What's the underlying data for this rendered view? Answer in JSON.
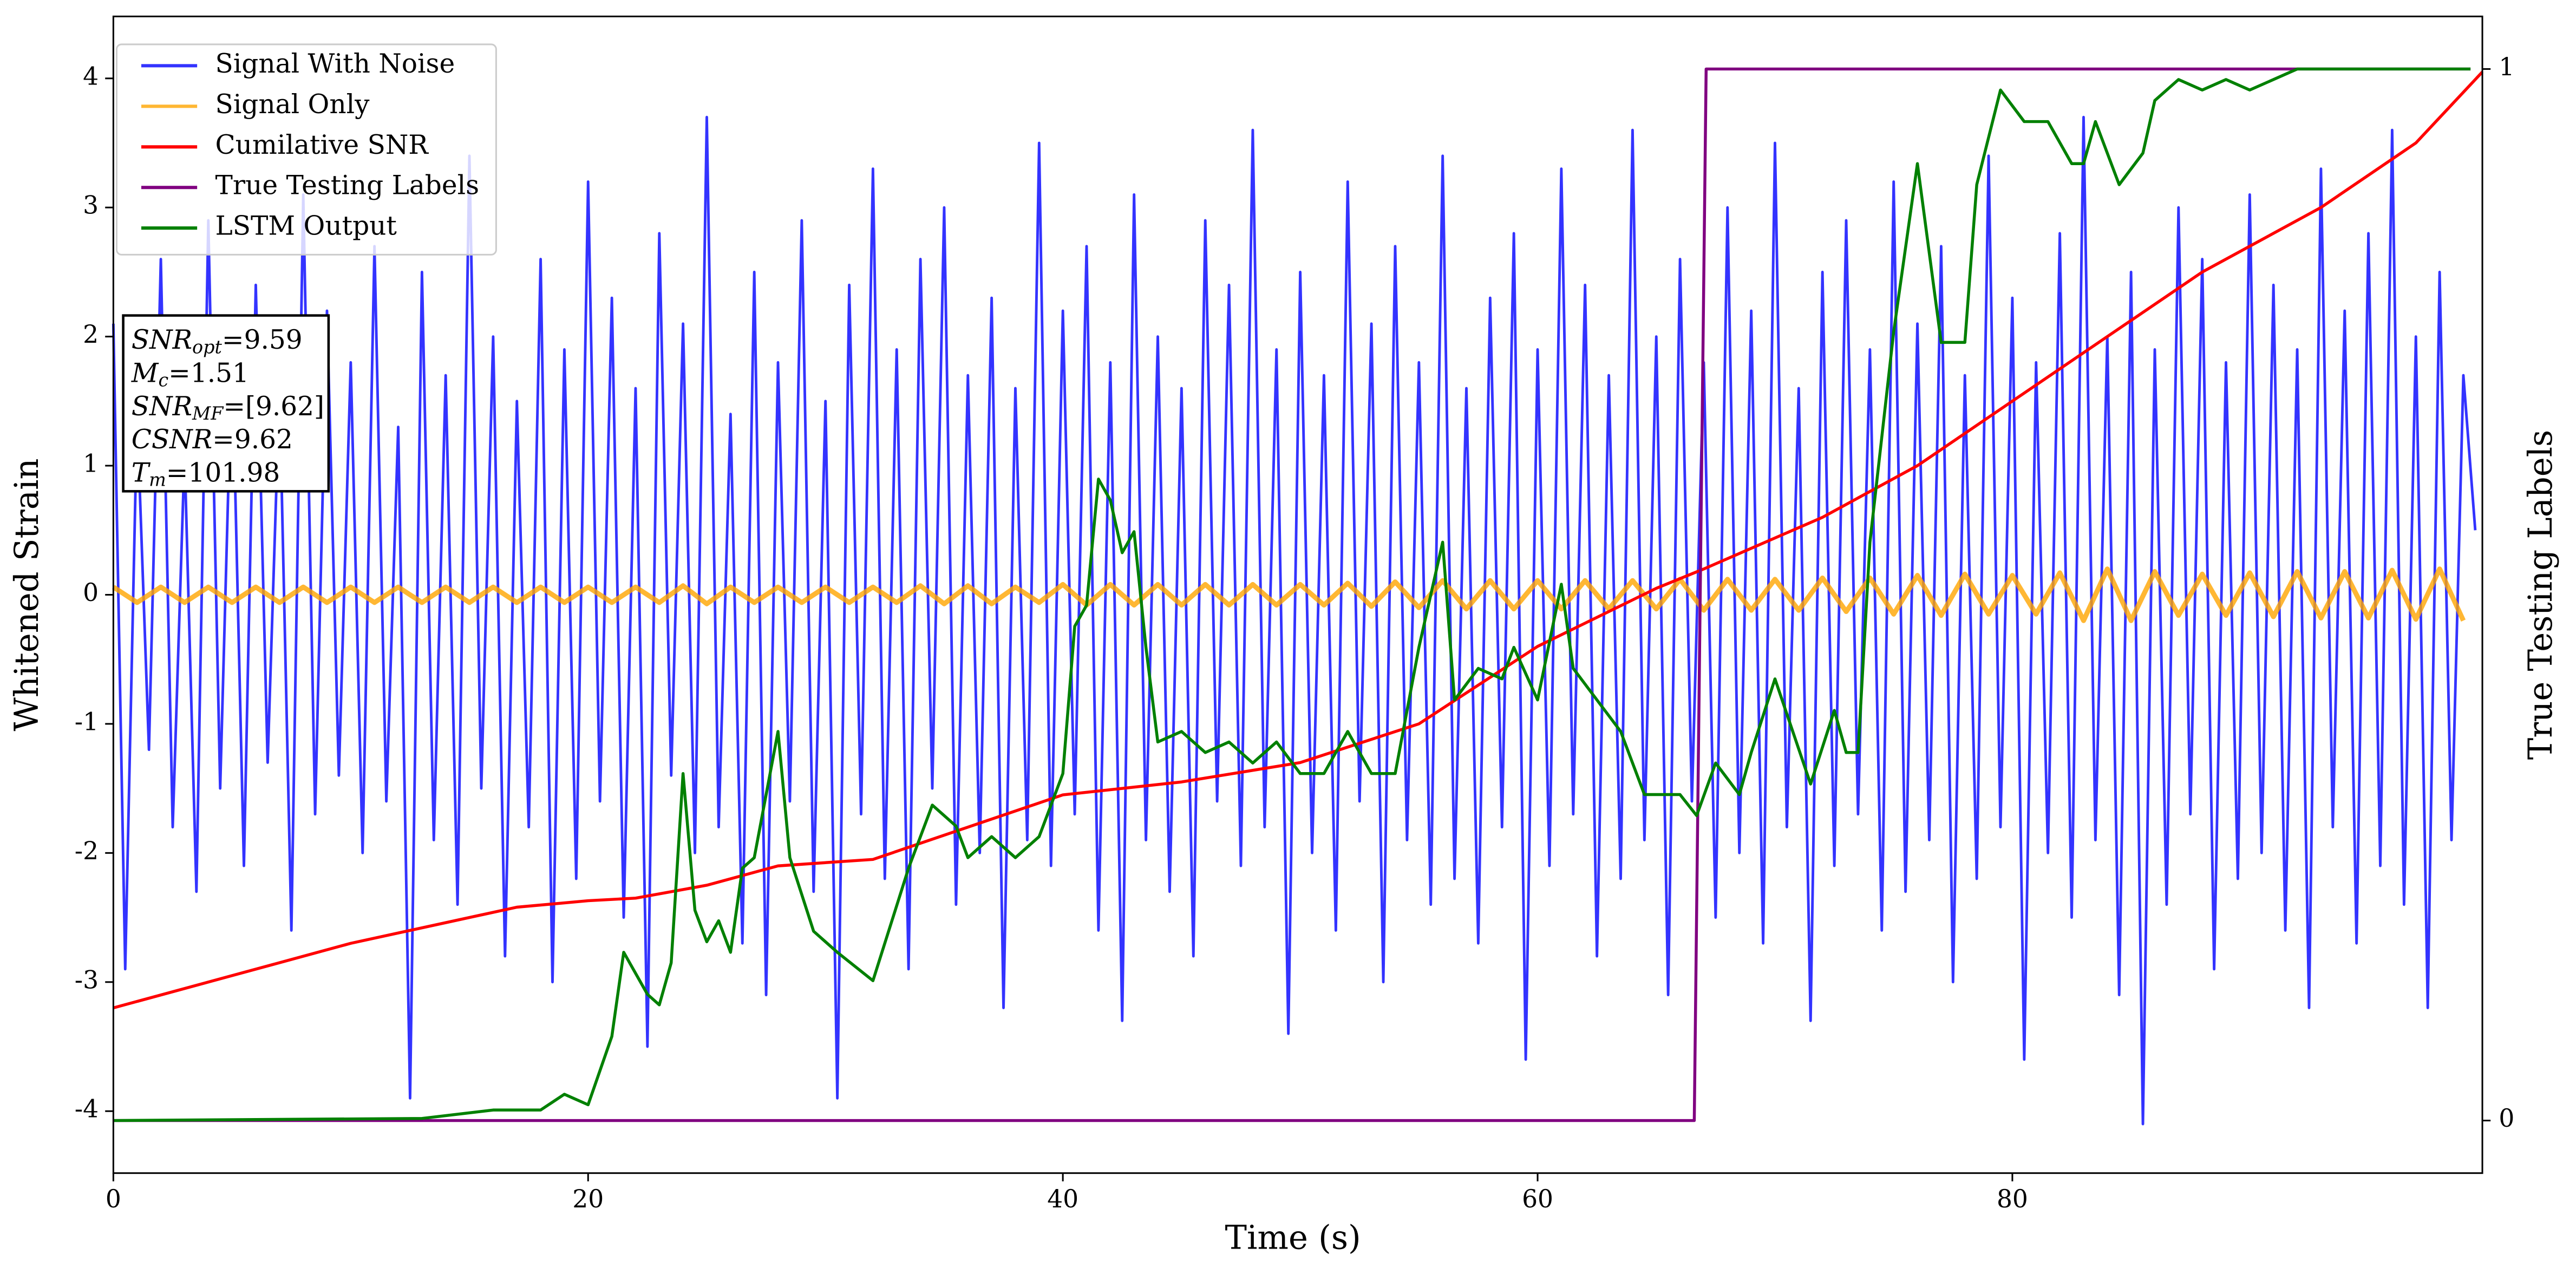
{
  "chart_data": {
    "type": "line",
    "xlabel": "Time (s)",
    "ylabel": "Whitened Strain",
    "y2label": "True Testing Labels",
    "xlim": [
      0,
      99.8
    ],
    "ylim": [
      -4.48,
      4.48
    ],
    "y2lim": [
      -0.05,
      1.05
    ],
    "xticks": [
      0,
      20,
      40,
      60,
      80
    ],
    "yticks": [
      -4,
      -3,
      -2,
      -1,
      0,
      1,
      2,
      3,
      4
    ],
    "y2ticks": [
      0,
      1
    ],
    "legend": "upper left",
    "series": [
      {
        "name": "Signal With Noise",
        "color": "#0000ff",
        "alpha": 0.8,
        "x": [
          0,
          0.5,
          1,
          1.5,
          2,
          2.5,
          3,
          3.5,
          4,
          4.5,
          5,
          5.5,
          6,
          6.5,
          7,
          7.5,
          8,
          8.5,
          9,
          9.5,
          10,
          10.5,
          11,
          11.5,
          12,
          12.5,
          13,
          13.5,
          14,
          14.5,
          15,
          15.5,
          16,
          16.5,
          17,
          17.5,
          18,
          18.5,
          19,
          19.5,
          20,
          20.5,
          21,
          21.5,
          22,
          22.5,
          23,
          23.5,
          24,
          24.5,
          25,
          25.5,
          26,
          26.5,
          27,
          27.5,
          28,
          28.5,
          29,
          29.5,
          30,
          30.5,
          31,
          31.5,
          32,
          32.5,
          33,
          33.5,
          34,
          34.5,
          35,
          35.5,
          36,
          36.5,
          37,
          37.5,
          38,
          38.5,
          39,
          39.5,
          40,
          40.5,
          41,
          41.5,
          42,
          42.5,
          43,
          43.5,
          44,
          44.5,
          45,
          45.5,
          46,
          46.5,
          47,
          47.5,
          48,
          48.5,
          49,
          49.5,
          50,
          50.5,
          51,
          51.5,
          52,
          52.5,
          53,
          53.5,
          54,
          54.5,
          55,
          55.5,
          56,
          56.5,
          57,
          57.5,
          58,
          58.5,
          59,
          59.5,
          60,
          60.5,
          61,
          61.5,
          62,
          62.5,
          63,
          63.5,
          64,
          64.5,
          65,
          65.5,
          66,
          66.5,
          67,
          67.5,
          68,
          68.5,
          69,
          69.5,
          70,
          70.5,
          71,
          71.5,
          72,
          72.5,
          73,
          73.5,
          74,
          74.5,
          75,
          75.5,
          76,
          76.5,
          77,
          77.5,
          78,
          78.5,
          79,
          79.5,
          80,
          80.5,
          81,
          81.5,
          82,
          82.5,
          83,
          83.5,
          84,
          84.5,
          85,
          85.5,
          86,
          86.5,
          87,
          87.5,
          88,
          88.5,
          89,
          89.5,
          90,
          90.5,
          91,
          91.5,
          92,
          92.5,
          93,
          93.5,
          94,
          94.5,
          95,
          95.5,
          96,
          96.5,
          97,
          97.5,
          98,
          98.5,
          99,
          99.5
        ],
        "values": [
          2.1,
          -2.9,
          1.4,
          -1.2,
          2.6,
          -1.8,
          1.1,
          -2.3,
          2.9,
          -1.5,
          1.9,
          -2.1,
          2.4,
          -1.3,
          1.6,
          -2.6,
          3.1,
          -1.7,
          2.2,
          -1.4,
          1.8,
          -2.0,
          2.7,
          -1.6,
          1.3,
          -3.9,
          2.5,
          -1.9,
          1.7,
          -2.4,
          3.4,
          -1.5,
          2.0,
          -2.8,
          1.5,
          -1.8,
          2.6,
          -3.0,
          1.9,
          -2.2,
          3.2,
          -1.6,
          2.3,
          -2.5,
          1.6,
          -3.5,
          2.8,
          -1.4,
          2.1,
          -2.0,
          3.7,
          -1.8,
          1.4,
          -2.7,
          2.5,
          -3.1,
          1.8,
          -1.6,
          2.9,
          -2.3,
          1.5,
          -3.9,
          2.4,
          -1.7,
          3.3,
          -2.2,
          1.9,
          -2.9,
          2.6,
          -1.5,
          3.0,
          -2.4,
          1.7,
          -2.0,
          2.3,
          -3.2,
          1.6,
          -1.9,
          3.5,
          -2.1,
          2.2,
          -1.7,
          2.7,
          -2.6,
          1.8,
          -3.3,
          3.1,
          -1.9,
          2.0,
          -2.3,
          1.6,
          -2.8,
          2.9,
          -1.6,
          2.4,
          -2.1,
          3.6,
          -1.8,
          1.9,
          -3.4,
          2.5,
          -2.0,
          1.7,
          -2.6,
          3.2,
          -1.6,
          2.1,
          -3.0,
          2.7,
          -1.9,
          1.8,
          -2.4,
          3.4,
          -2.2,
          1.6,
          -2.7,
          2.3,
          -1.8,
          2.8,
          -3.6,
          1.9,
          -2.1,
          3.3,
          -1.7,
          2.4,
          -2.8,
          1.7,
          -2.2,
          3.6,
          -1.9,
          2.0,
          -3.1,
          2.6,
          -1.6,
          1.8,
          -2.5,
          3.0,
          -2.0,
          2.2,
          -2.7,
          3.5,
          -1.8,
          1.6,
          -3.3,
          2.5,
          -2.1,
          2.9,
          -1.7,
          1.9,
          -2.6,
          3.2,
          -2.3,
          2.1,
          -1.9,
          2.7,
          -3.0,
          1.7,
          -2.2,
          3.4,
          -1.8,
          2.3,
          -3.6,
          1.8,
          -2.0,
          2.8,
          -2.5,
          3.7,
          -1.9,
          2.0,
          -3.1,
          2.5,
          -4.1,
          1.9,
          -2.4,
          3.0,
          -1.7,
          2.6,
          -2.9,
          1.8,
          -2.2,
          3.1,
          -2.0,
          2.4,
          -2.6,
          1.9,
          -3.2,
          3.3,
          -1.8,
          2.2,
          -2.7,
          2.8,
          -2.1,
          3.6,
          -2.4,
          2.0,
          -3.2,
          2.5,
          -1.9,
          1.7,
          0.5
        ]
      },
      {
        "name": "Signal Only",
        "color": "#ffa500",
        "alpha": 0.8,
        "x": [
          0,
          1,
          2,
          3,
          4,
          5,
          6,
          7,
          8,
          9,
          10,
          11,
          12,
          13,
          14,
          15,
          16,
          17,
          18,
          19,
          20,
          21,
          22,
          23,
          24,
          25,
          26,
          27,
          28,
          29,
          30,
          31,
          32,
          33,
          34,
          35,
          36,
          37,
          38,
          39,
          40,
          41,
          42,
          43,
          44,
          45,
          46,
          47,
          48,
          49,
          50,
          51,
          52,
          53,
          54,
          55,
          56,
          57,
          58,
          59,
          60,
          61,
          62,
          63,
          64,
          65,
          66,
          67,
          68,
          69,
          70,
          71,
          72,
          73,
          74,
          75,
          76,
          77,
          78,
          79,
          80,
          81,
          82,
          83,
          84,
          85,
          86,
          87,
          88,
          89,
          90,
          91,
          92,
          93,
          94,
          95,
          96,
          97,
          98,
          99
        ],
        "values": [
          0.06,
          -0.06,
          0.06,
          -0.06,
          0.06,
          -0.06,
          0.06,
          -0.06,
          0.06,
          -0.06,
          0.06,
          -0.06,
          0.06,
          -0.06,
          0.06,
          -0.06,
          0.06,
          -0.06,
          0.06,
          -0.06,
          0.06,
          -0.06,
          0.06,
          -0.06,
          0.07,
          -0.07,
          0.06,
          -0.06,
          0.06,
          -0.06,
          0.06,
          -0.06,
          0.06,
          -0.06,
          0.07,
          -0.07,
          0.07,
          -0.07,
          0.06,
          -0.06,
          0.08,
          -0.08,
          0.08,
          -0.08,
          0.08,
          -0.08,
          0.08,
          -0.08,
          0.08,
          -0.08,
          0.08,
          -0.08,
          0.09,
          -0.09,
          0.1,
          -0.1,
          0.11,
          -0.11,
          0.11,
          -0.11,
          0.11,
          -0.11,
          0.11,
          -0.11,
          0.11,
          -0.11,
          0.12,
          -0.12,
          0.12,
          -0.12,
          0.12,
          -0.12,
          0.13,
          -0.13,
          0.13,
          -0.15,
          0.15,
          -0.16,
          0.16,
          -0.15,
          0.15,
          -0.15,
          0.17,
          -0.2,
          0.2,
          -0.2,
          0.18,
          -0.16,
          0.16,
          -0.16,
          0.17,
          -0.17,
          0.18,
          -0.18,
          0.18,
          -0.18,
          0.19,
          -0.19,
          0.2,
          -0.2
        ]
      },
      {
        "name": "Cumilative SNR",
        "color": "#ff0000",
        "x": [
          0,
          5,
          10,
          15,
          17,
          20,
          22,
          25,
          28,
          32,
          36,
          40,
          45,
          50,
          55,
          60,
          65,
          67,
          72,
          76,
          80,
          84,
          88,
          93,
          97,
          99.8
        ],
        "values": [
          -3.2,
          -2.95,
          -2.7,
          -2.5,
          -2.42,
          -2.37,
          -2.35,
          -2.25,
          -2.1,
          -2.05,
          -1.8,
          -1.55,
          -1.45,
          -1.3,
          -1.0,
          -0.4,
          0.05,
          0.2,
          0.6,
          1.0,
          1.5,
          2.0,
          2.5,
          3.0,
          3.5,
          4.05
        ]
      },
      {
        "name": "True Testing Labels",
        "color": "#800080",
        "axis": "y2",
        "x": [
          0,
          66.6,
          67.1,
          99.3
        ],
        "values": [
          0,
          0,
          1,
          1
        ]
      },
      {
        "name": "LSTM Output",
        "color": "#008000",
        "axis": "y2",
        "x": [
          0,
          13,
          16,
          18,
          19,
          20,
          21,
          21.5,
          22.5,
          23,
          23.5,
          24,
          24.5,
          25,
          25.5,
          26,
          26.5,
          27,
          28,
          28.5,
          29.5,
          30.5,
          32,
          33.5,
          34.5,
          35.5,
          36,
          37,
          38,
          39,
          40,
          40.5,
          41,
          41.5,
          42,
          42.5,
          43,
          43.5,
          44,
          45,
          46,
          47,
          48,
          49,
          50,
          51,
          52,
          53,
          54,
          55,
          56,
          56.5,
          57.5,
          58.5,
          59,
          60,
          61,
          61.5,
          62.5,
          63.5,
          64.5,
          66,
          66.7,
          67.5,
          68.5,
          69,
          70,
          71.5,
          72.5,
          73,
          73.5,
          74,
          75,
          76,
          77,
          78,
          78.5,
          79.5,
          80.5,
          81.5,
          82.5,
          83,
          83.5,
          84.5,
          85.5,
          86,
          87,
          88,
          89,
          90,
          91,
          92,
          94,
          99.3
        ],
        "values": [
          0,
          0.002,
          0.01,
          0.01,
          0.025,
          0.015,
          0.08,
          0.16,
          0.12,
          0.11,
          0.15,
          0.33,
          0.2,
          0.17,
          0.19,
          0.16,
          0.24,
          0.25,
          0.37,
          0.25,
          0.18,
          0.16,
          0.133,
          0.24,
          0.3,
          0.28,
          0.25,
          0.27,
          0.25,
          0.27,
          0.33,
          0.47,
          0.49,
          0.61,
          0.59,
          0.54,
          0.56,
          0.45,
          0.36,
          0.37,
          0.35,
          0.36,
          0.34,
          0.36,
          0.33,
          0.33,
          0.37,
          0.33,
          0.33,
          0.45,
          0.55,
          0.4,
          0.43,
          0.42,
          0.45,
          0.4,
          0.51,
          0.43,
          0.4,
          0.37,
          0.31,
          0.31,
          0.29,
          0.34,
          0.31,
          0.35,
          0.42,
          0.32,
          0.39,
          0.35,
          0.35,
          0.55,
          0.75,
          0.91,
          0.74,
          0.74,
          0.89,
          0.98,
          0.95,
          0.95,
          0.91,
          0.91,
          0.95,
          0.89,
          0.92,
          0.97,
          0.99,
          0.98,
          0.99,
          0.98,
          0.99,
          1,
          1,
          1
        ]
      }
    ],
    "annotations": [
      {
        "main": "SNR",
        "sub": "opt",
        "rest": "=9.59"
      },
      {
        "main": "M",
        "sub": "c",
        "rest": "=1.51"
      },
      {
        "main": "SNR",
        "sub": "MF",
        "rest": "=[9.62]"
      },
      {
        "main": "CSNR",
        "rest": "=9.62"
      },
      {
        "main": "T",
        "sub": "m",
        "rest": "=101.98"
      }
    ]
  }
}
